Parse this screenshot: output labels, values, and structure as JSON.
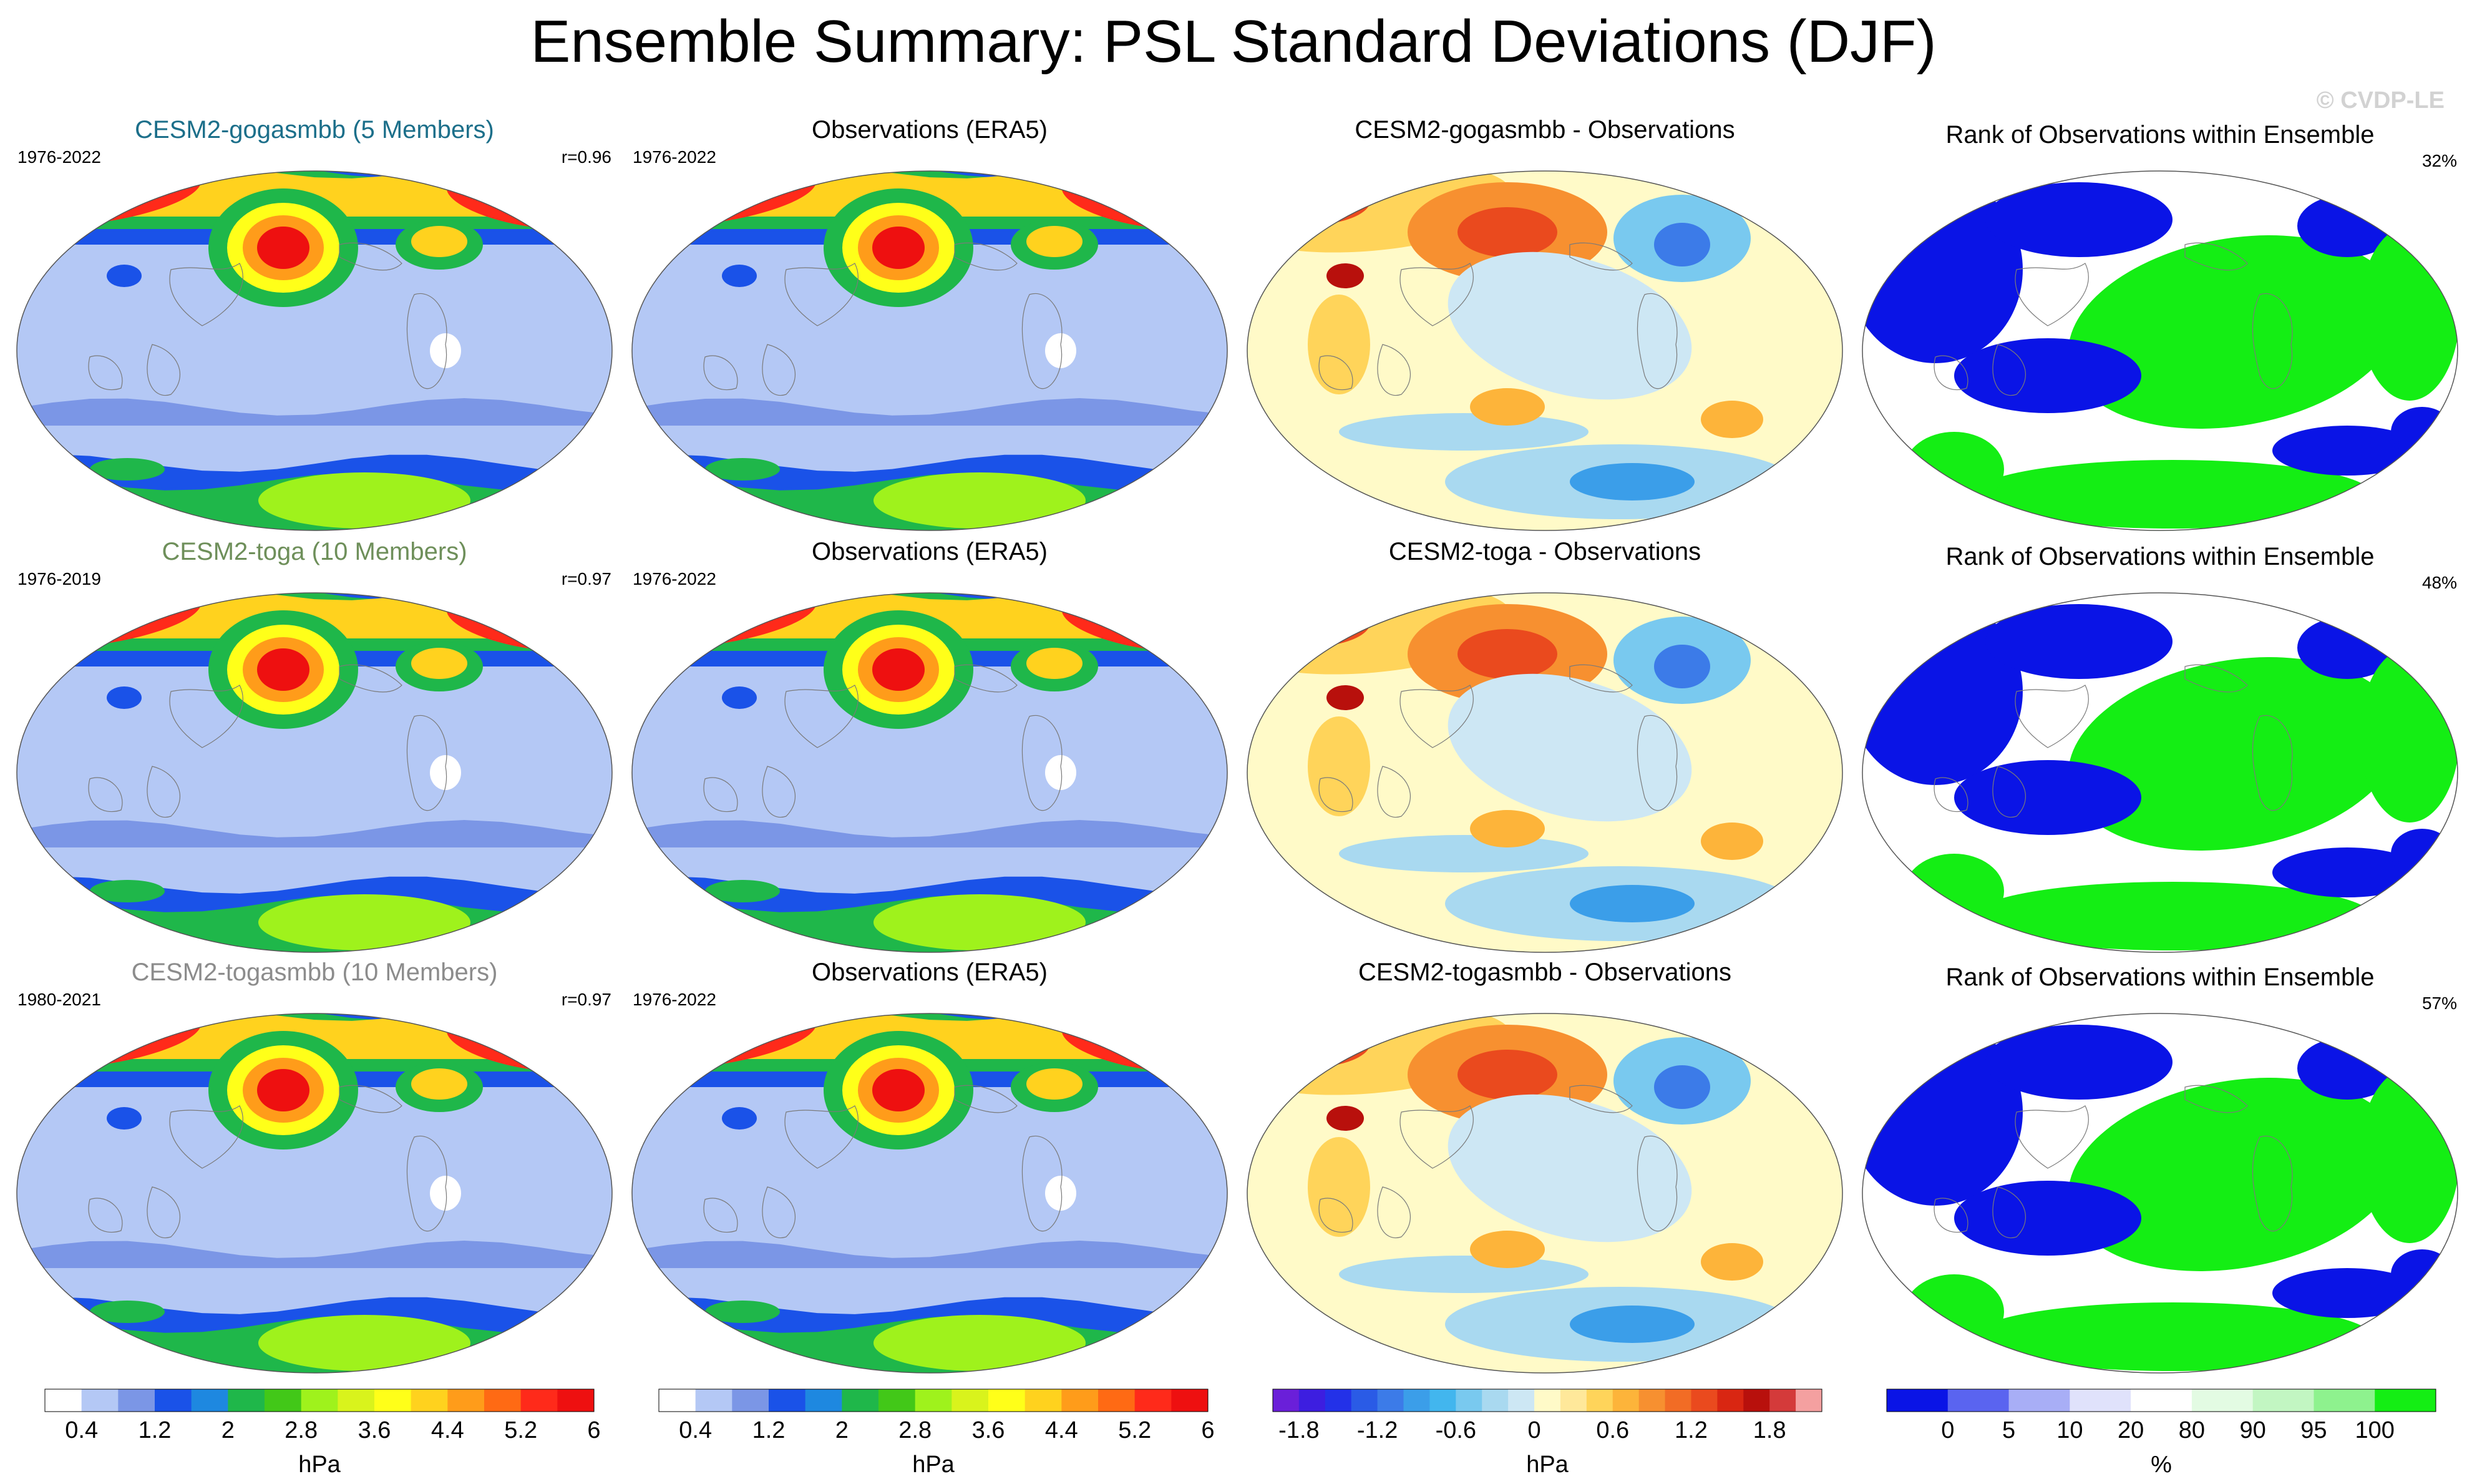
{
  "title": "Ensemble Summary: PSL Standard Deviations (DJF)",
  "watermark": "© CVDP-LE",
  "rows": [
    {
      "model": {
        "title": "CESM2-gogasmbb (5 Members)",
        "title_color": "#1c6f8a",
        "years": "1976-2022",
        "corr": "r=0.96"
      },
      "obs": {
        "title": "Observations (ERA5)",
        "years": "1976-2022"
      },
      "diff": {
        "title": "CESM2-gogasmbb - Observations"
      },
      "rank": {
        "title": "Rank of Observations within Ensemble",
        "percent": "32%"
      }
    },
    {
      "model": {
        "title": "CESM2-toga (10 Members)",
        "title_color": "#6e8f5a",
        "years": "1976-2019",
        "corr": "r=0.97"
      },
      "obs": {
        "title": "Observations (ERA5)",
        "years": "1976-2022"
      },
      "diff": {
        "title": "CESM2-toga - Observations"
      },
      "rank": {
        "title": "Rank of Observations within Ensemble",
        "percent": "48%"
      }
    },
    {
      "model": {
        "title": "CESM2-togasmbb (10 Members)",
        "title_color": "#8c8c8c",
        "years": "1980-2021",
        "corr": "r=0.97"
      },
      "obs": {
        "title": "Observations (ERA5)",
        "years": "1976-2022"
      },
      "diff": {
        "title": "CESM2-togasmbb - Observations"
      },
      "rank": {
        "title": "Rank of Observations within Ensemble",
        "percent": "57%"
      }
    }
  ],
  "chart_data": [
    {
      "type": "heatmap",
      "name": "std-colorbar-model",
      "unit": "hPa",
      "levels": [
        0.4,
        0.8,
        1.2,
        1.6,
        2,
        2.4,
        2.8,
        3.2,
        3.6,
        4,
        4.4,
        4.8,
        5.2,
        5.6,
        6
      ],
      "tick_labels": [
        "0.4",
        "1.2",
        "2",
        "2.8",
        "3.6",
        "4.4",
        "5.2",
        "6"
      ],
      "colors": [
        "#ffffff",
        "#b4c8f5",
        "#7b96e6",
        "#1a52e8",
        "#1e88e0",
        "#1fb74a",
        "#42c818",
        "#9ff21c",
        "#d9f31c",
        "#ffff19",
        "#ffd21e",
        "#ff9c1a",
        "#ff6a14",
        "#ff2a1a",
        "#ee1010"
      ]
    },
    {
      "type": "heatmap",
      "name": "std-colorbar-obs",
      "unit": "hPa",
      "levels": [
        0.4,
        0.8,
        1.2,
        1.6,
        2,
        2.4,
        2.8,
        3.2,
        3.6,
        4,
        4.4,
        4.8,
        5.2,
        5.6,
        6
      ],
      "tick_labels": [
        "0.4",
        "1.2",
        "2",
        "2.8",
        "3.6",
        "4.4",
        "5.2",
        "6"
      ],
      "colors": [
        "#ffffff",
        "#b4c8f5",
        "#7b96e6",
        "#1a52e8",
        "#1e88e0",
        "#1fb74a",
        "#42c818",
        "#9ff21c",
        "#d9f31c",
        "#ffff19",
        "#ffd21e",
        "#ff9c1a",
        "#ff6a14",
        "#ff2a1a",
        "#ee1010"
      ]
    },
    {
      "type": "heatmap",
      "name": "diff-colorbar",
      "unit": "hPa",
      "range": [
        -2.1,
        2.1
      ],
      "tick_labels": [
        "-1.8",
        "-1.2",
        "-0.6",
        "0",
        "0.6",
        "1.2",
        "1.8"
      ],
      "colors": [
        "#6a1fd9",
        "#3d1ee0",
        "#2331e8",
        "#2a5be6",
        "#3c7be8",
        "#3b9ee9",
        "#42b6ee",
        "#79c9ef",
        "#a9d9f0",
        "#cde7f4",
        "#fffac8",
        "#ffe89a",
        "#ffd45a",
        "#fdb43a",
        "#f79030",
        "#f26c25",
        "#ea4a1e",
        "#d92612",
        "#b8100c",
        "#d43a3a",
        "#f4a0a0"
      ]
    },
    {
      "type": "heatmap",
      "name": "rank-colorbar",
      "unit": "%",
      "tick_labels": [
        "0",
        "5",
        "10",
        "20",
        "80",
        "90",
        "95",
        "100"
      ],
      "colors": [
        "#0a14e6",
        "#5a64f0",
        "#a8aef6",
        "#e0e2fb",
        "#ffffff",
        "#e3fbe3",
        "#c2f6c2",
        "#8ef28e",
        "#14ee14"
      ]
    }
  ]
}
